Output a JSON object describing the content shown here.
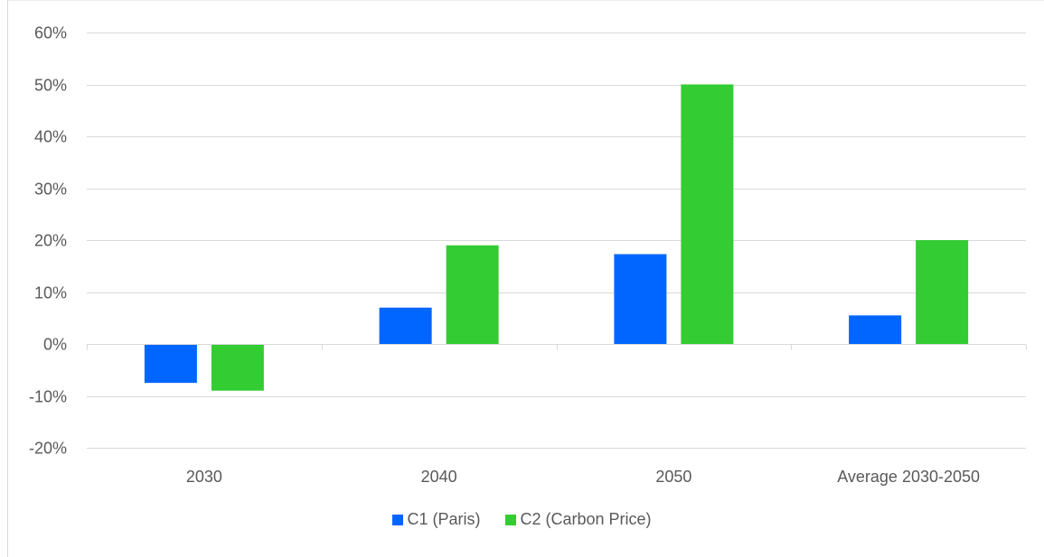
{
  "chart_data": {
    "type": "bar",
    "categories": [
      "2030",
      "2040",
      "2050",
      "Average 2030-2050"
    ],
    "series": [
      {
        "name": "C1 (Paris)",
        "values": [
          -7.5,
          7,
          17.3,
          5.5
        ],
        "color": "#0066ff"
      },
      {
        "name": "C2 (Carbon Price)",
        "values": [
          -9,
          19,
          50,
          20
        ],
        "color": "#33cc33"
      }
    ],
    "yticks": [
      "-20%",
      "-10%",
      "0%",
      "10%",
      "20%",
      "30%",
      "40%",
      "50%",
      "60%"
    ],
    "ylim": [
      -20,
      60
    ],
    "ytick_step": 10,
    "grid": true,
    "legend_position": "bottom"
  }
}
